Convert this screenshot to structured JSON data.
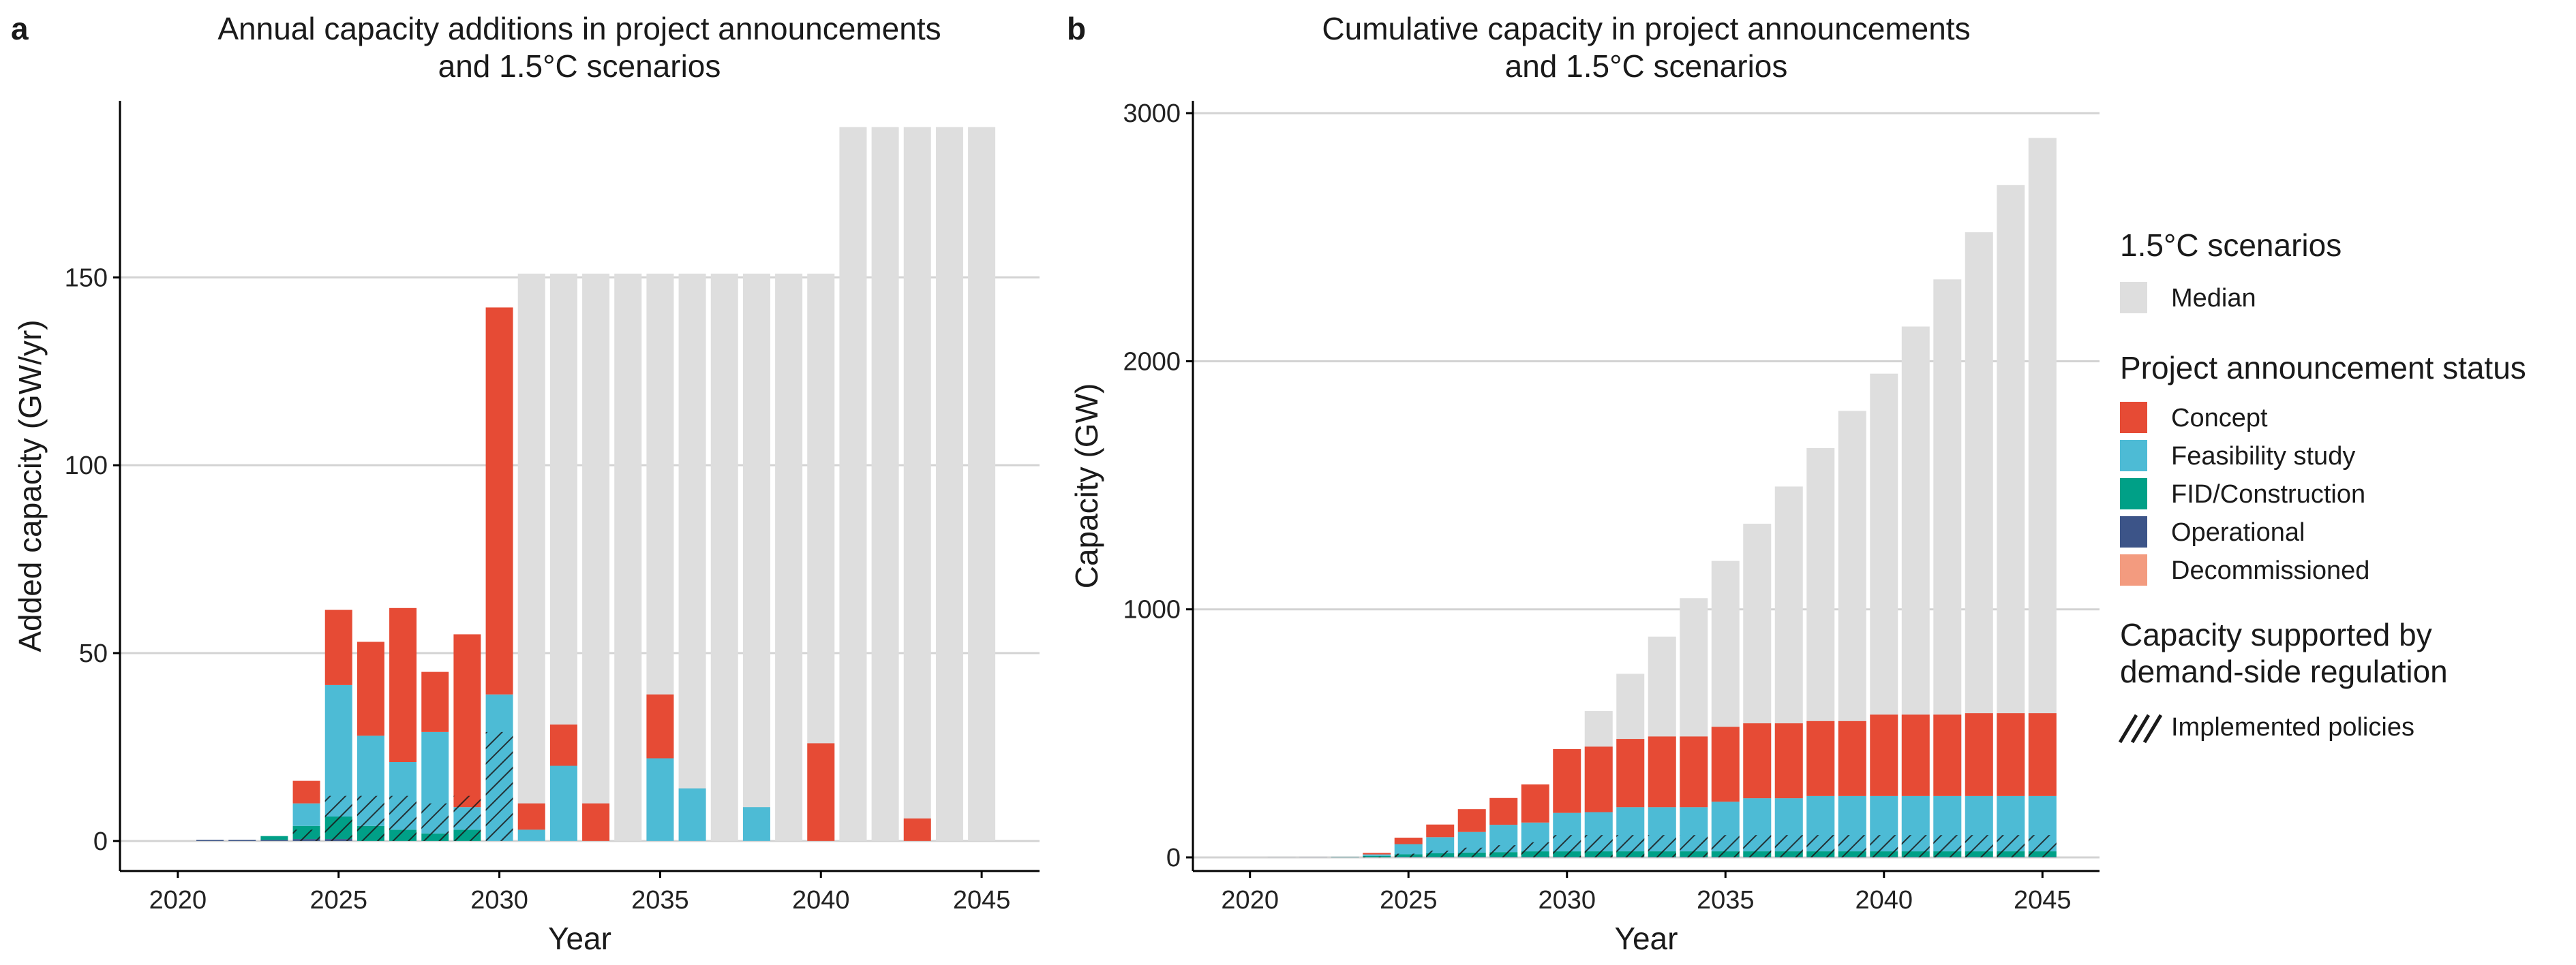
{
  "chart_data": [
    {
      "panel": "a",
      "type": "bar",
      "title": [
        "Annual capacity additions in project announcements",
        "and 1.5°C scenarios"
      ],
      "xlabel": "Year",
      "ylabel": "Added capacity (GW/yr)",
      "ylim": [
        -8,
        197
      ],
      "yticks": [
        0,
        50,
        100,
        150
      ],
      "xticks": [
        2020,
        2025,
        2030,
        2035,
        2040,
        2045
      ],
      "categories": [
        2020,
        2021,
        2022,
        2023,
        2024,
        2025,
        2026,
        2027,
        2028,
        2029,
        2030,
        2031,
        2032,
        2033,
        2034,
        2035,
        2036,
        2037,
        2038,
        2039,
        2040,
        2041,
        2042,
        2043,
        2044,
        2045
      ],
      "scenario": {
        "name": "Median",
        "values": [
          0,
          0,
          0,
          0,
          0,
          0,
          0,
          0,
          0,
          0,
          0,
          151,
          151,
          151,
          151,
          151,
          151,
          151,
          151,
          151,
          151,
          190,
          190,
          190,
          190,
          190
        ]
      },
      "series": [
        {
          "name": "Decommissioned",
          "values": [
            0,
            0,
            0,
            0,
            0,
            0,
            0,
            0,
            0,
            0,
            0,
            0,
            0,
            0,
            0,
            0,
            0,
            0,
            0,
            0,
            0,
            0,
            0,
            0,
            0,
            0
          ]
        },
        {
          "name": "Operational",
          "values": [
            0,
            0.3,
            0.3,
            0.3,
            0.5,
            0.5,
            0,
            0,
            0,
            0,
            0,
            0,
            0,
            0,
            0,
            0,
            0,
            0,
            0,
            0,
            0,
            0,
            0,
            0,
            0,
            0
          ]
        },
        {
          "name": "FID/Construction",
          "values": [
            0,
            0,
            0,
            1,
            3.5,
            6,
            4,
            3,
            2,
            3,
            0,
            0,
            0,
            0,
            0,
            0,
            0,
            0,
            0,
            0,
            0,
            0,
            0,
            0,
            0,
            0
          ]
        },
        {
          "name": "Feasibility study",
          "values": [
            0,
            0,
            0,
            0,
            6,
            35,
            24,
            18,
            27,
            6,
            39,
            3,
            20,
            0,
            0,
            22,
            14,
            0,
            9,
            0,
            0,
            0,
            0,
            0,
            0,
            0
          ]
        },
        {
          "name": "Concept",
          "values": [
            0,
            0,
            0,
            0,
            6,
            20,
            25,
            41,
            16,
            46,
            103,
            7,
            11,
            10,
            0,
            17,
            0,
            0,
            0,
            0,
            26,
            0,
            0,
            6,
            0,
            0
          ]
        }
      ],
      "hatched": [
        0,
        0,
        0,
        0,
        3,
        12,
        12,
        12,
        10,
        12,
        29,
        0,
        0,
        0,
        0,
        0,
        0,
        0,
        0,
        0,
        0,
        0,
        0,
        0,
        0,
        0
      ]
    },
    {
      "panel": "b",
      "type": "bar",
      "title": [
        "Cumulative capacity in project announcements",
        "and 1.5°C scenarios"
      ],
      "xlabel": "Year",
      "ylabel": "Capacity (GW)",
      "ylim": [
        -55,
        3050
      ],
      "yticks": [
        0,
        1000,
        2000,
        3000
      ],
      "xticks": [
        2020,
        2025,
        2030,
        2035,
        2040,
        2045
      ],
      "categories": [
        2020,
        2021,
        2022,
        2023,
        2024,
        2025,
        2026,
        2027,
        2028,
        2029,
        2030,
        2031,
        2032,
        2033,
        2034,
        2035,
        2036,
        2037,
        2038,
        2039,
        2040,
        2041,
        2042,
        2043,
        2044,
        2045
      ],
      "scenario": {
        "name": "Median",
        "values": [
          0,
          0,
          0,
          0,
          0,
          0,
          0,
          0,
          0,
          0,
          0,
          590,
          740,
          890,
          1045,
          1195,
          1345,
          1495,
          1650,
          1800,
          1950,
          2140,
          2330,
          2520,
          2710,
          2900
        ]
      },
      "series": [
        {
          "name": "Decommissioned",
          "values": [
            0,
            0,
            0,
            0,
            0,
            0,
            0,
            0,
            0,
            0,
            0,
            0,
            0,
            0,
            0,
            0,
            0,
            0,
            0,
            0,
            0,
            0,
            0,
            0,
            0,
            0
          ]
        },
        {
          "name": "Operational",
          "values": [
            0,
            0.3,
            0.6,
            0.9,
            1.4,
            1.9,
            1.9,
            1.9,
            1.9,
            1.9,
            1.9,
            1.9,
            1.9,
            1.9,
            1.9,
            1.9,
            1.9,
            1.9,
            1.9,
            1.9,
            1.9,
            1.9,
            1.9,
            1.9,
            1.9,
            1.9
          ]
        },
        {
          "name": "FID/Construction",
          "values": [
            0,
            0,
            0,
            1,
            4.5,
            10.5,
            14.5,
            17.5,
            19.5,
            22.5,
            22.5,
            22.5,
            22.5,
            22.5,
            22.5,
            22.5,
            22.5,
            22.5,
            22.5,
            22.5,
            22.5,
            22.5,
            22.5,
            22.5,
            22.5,
            22.5
          ]
        },
        {
          "name": "Feasibility study",
          "values": [
            0,
            0,
            0,
            0,
            6,
            41,
            65,
            83,
            110,
            116,
            155,
            158,
            178,
            178,
            178,
            200,
            214,
            214,
            223,
            223,
            223,
            223,
            223,
            223,
            223,
            223
          ]
        },
        {
          "name": "Concept",
          "values": [
            0,
            0,
            0,
            0,
            6,
            26,
            51,
            92,
            108,
            154,
            257,
            264,
            275,
            285,
            285,
            302,
            302,
            302,
            302,
            302,
            328,
            328,
            328,
            334,
            334,
            334
          ]
        }
      ],
      "hatched": [
        0,
        0,
        0,
        0,
        3,
        15,
        27,
        39,
        49,
        61,
        90,
        90,
        90,
        90,
        90,
        90,
        90,
        90,
        90,
        90,
        90,
        90,
        90,
        90,
        90,
        90
      ]
    }
  ],
  "legend": {
    "scenario_title": "1.5°C scenarios",
    "scenario_items": [
      {
        "label": "Median",
        "color": "#dedede"
      }
    ],
    "status_title": "Project announcement status",
    "status_items": [
      {
        "label": "Concept",
        "color": "#e64b35"
      },
      {
        "label": "Feasibility study",
        "color": "#4dbbd5"
      },
      {
        "label": "FID/Construction",
        "color": "#00a087"
      },
      {
        "label": "Operational",
        "color": "#3c5488"
      },
      {
        "label": "Decommissioned",
        "color": "#f39b7f"
      }
    ],
    "policy_title": [
      "Capacity supported by",
      "demand-side regulation"
    ],
    "policy_items": [
      {
        "label": "Implemented policies"
      }
    ]
  },
  "colors": {
    "Median": "#dedede",
    "Concept": "#e64b35",
    "Feasibility study": "#4dbbd5",
    "FID/Construction": "#00a087",
    "Operational": "#3c5488",
    "Decommissioned": "#f39b7f",
    "grid": "#d3d3d3",
    "axis": "#000000"
  }
}
